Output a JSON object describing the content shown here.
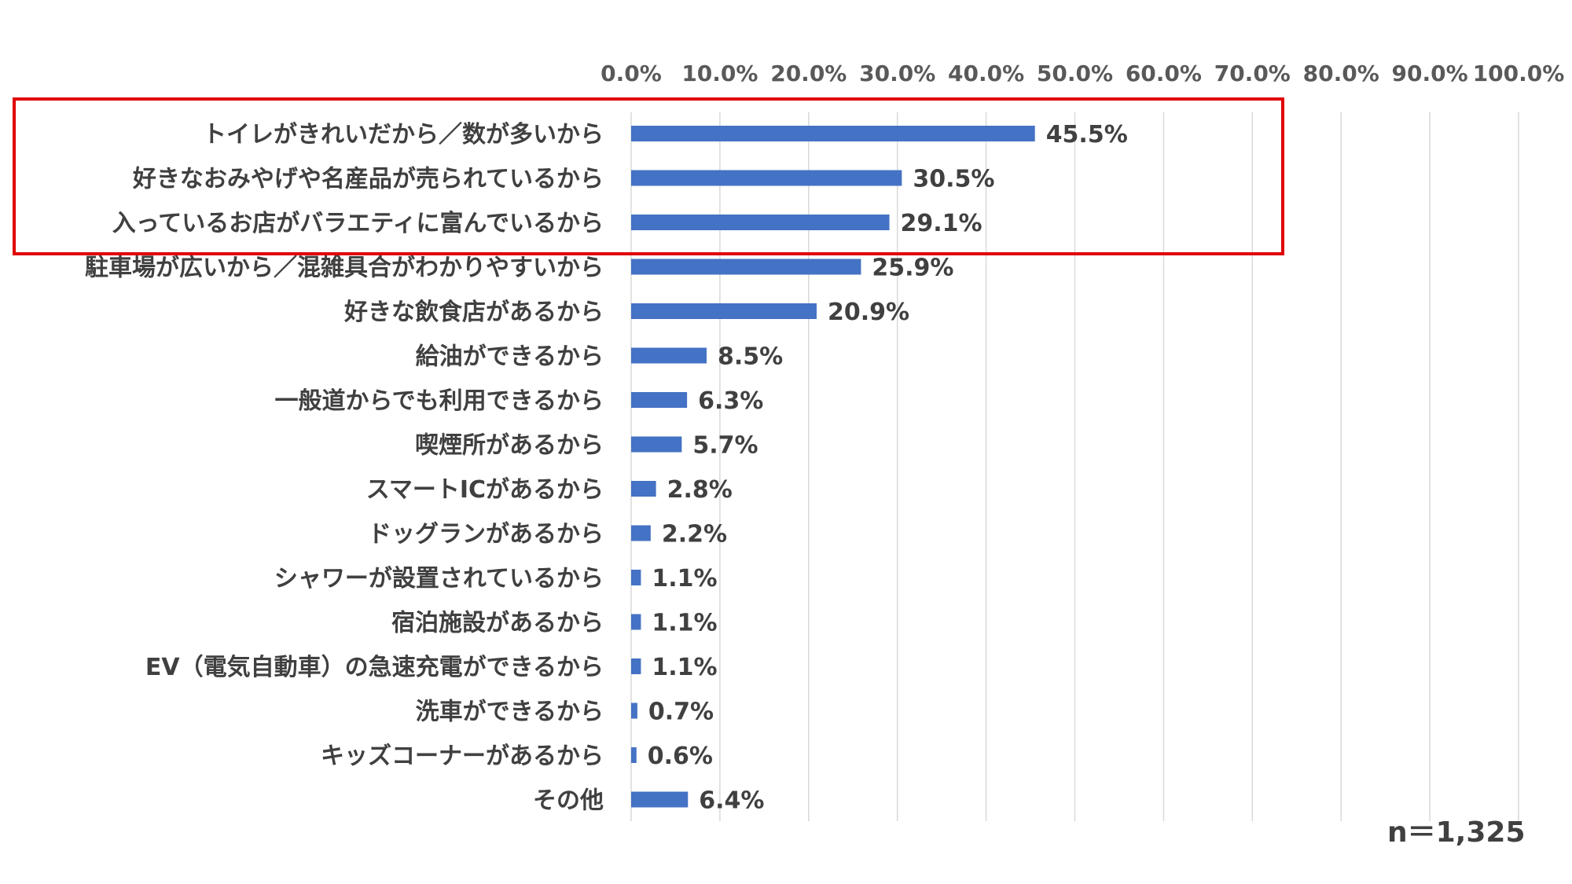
{
  "chart_data": {
    "type": "bar",
    "orientation": "horizontal",
    "categories": [
      "トイレがきれいだから／数が多いから",
      "好きなおみやげや名産品が売られているから",
      "入っているお店がバラエティに富んでいるから",
      "駐車場が広いから／混雑具合がわかりやすいから",
      "好きな飲食店があるから",
      "給油ができるから",
      "一般道からでも利用できるから",
      "喫煙所があるから",
      "スマートICがあるから",
      "ドッグランがあるから",
      "シャワーが設置されているから",
      "宿泊施設があるから",
      "EV（電気自動車）の急速充電ができるから",
      "洗車ができるから",
      "キッズコーナーがあるから",
      "その他"
    ],
    "values": [
      45.5,
      30.5,
      29.1,
      25.9,
      20.9,
      8.5,
      6.3,
      5.7,
      2.8,
      2.2,
      1.1,
      1.1,
      1.1,
      0.7,
      0.6,
      6.4
    ],
    "value_labels": [
      "45.5%",
      "30.5%",
      "29.1%",
      "25.9%",
      "20.9%",
      "8.5%",
      "6.3%",
      "5.7%",
      "2.8%",
      "2.2%",
      "1.1%",
      "1.1%",
      "1.1%",
      "0.7%",
      "0.6%",
      "6.4%"
    ],
    "xlim": [
      0,
      100
    ],
    "ticks": [
      0,
      10,
      20,
      30,
      40,
      50,
      60,
      70,
      80,
      90,
      100
    ],
    "tick_labels": [
      "0.0%",
      "10.0%",
      "20.0%",
      "30.0%",
      "40.0%",
      "50.0%",
      "60.0%",
      "70.0%",
      "80.0%",
      "90.0%",
      "100.0%"
    ],
    "axis_position": "top",
    "grid": true,
    "bar_color": "#4472C4",
    "grid_color": "#D9D9D9",
    "highlight": {
      "start_index": 0,
      "count": 3,
      "color": "#E00000"
    },
    "note": "n＝1,325"
  }
}
